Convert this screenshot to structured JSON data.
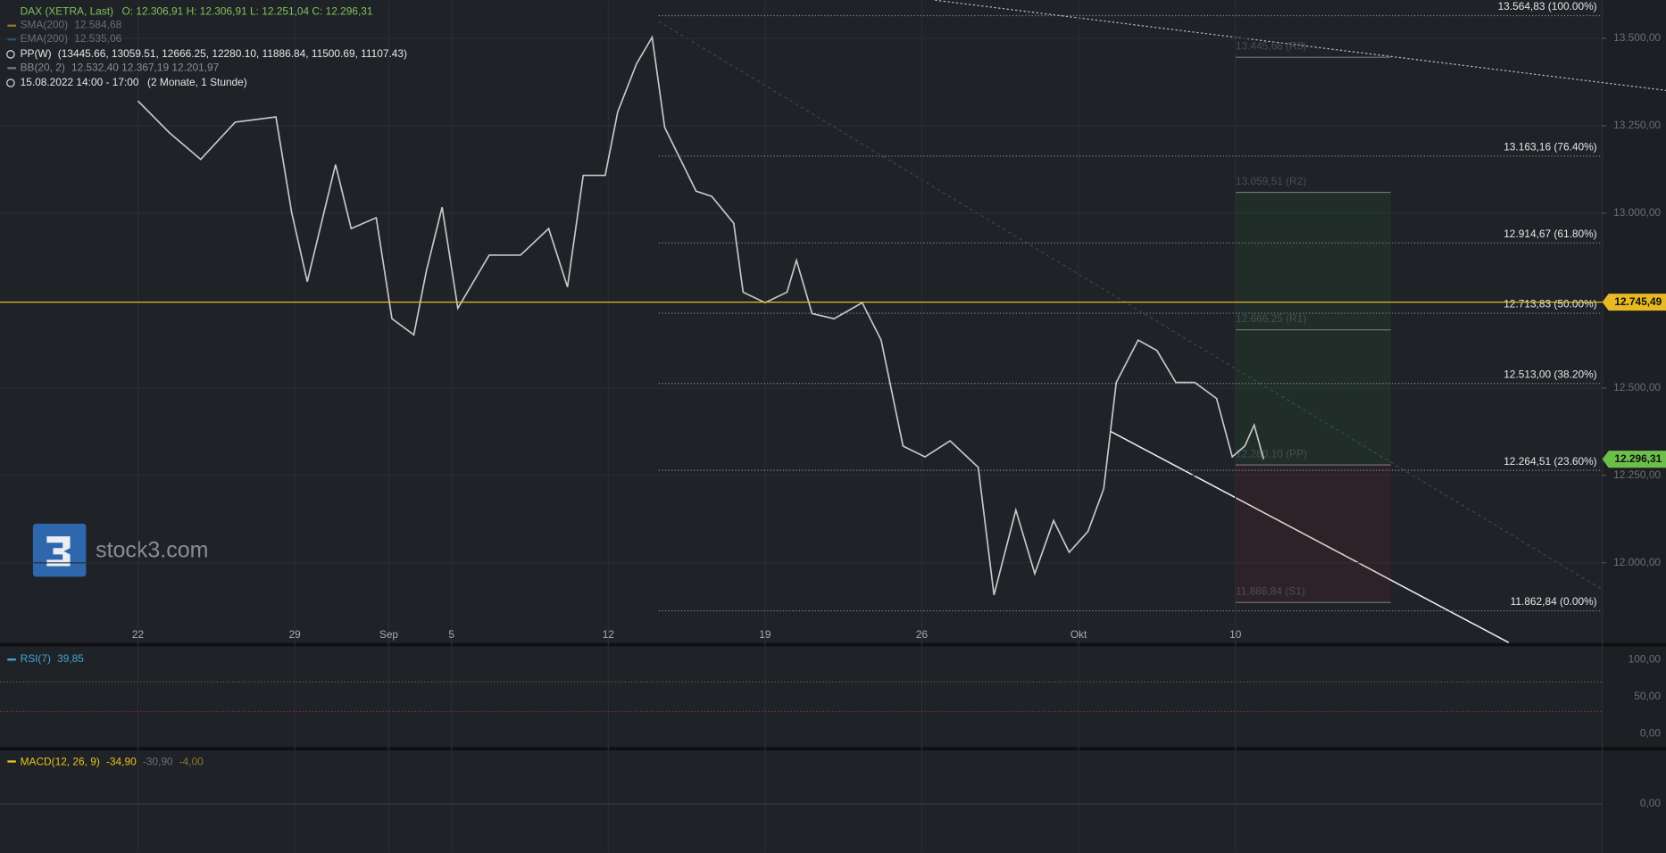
{
  "legend": {
    "symbol": "DAX (XETRA, Last)",
    "ohlc": "O: 12.306,91  H: 12.306,91  L: 12.251,04  C: 12.296,31",
    "sma": "SMA(200)",
    "sma_value": "12.584,68",
    "ema": "EMA(200)",
    "ema_value": "12.535,06",
    "pp": "PP(W)",
    "pp_values": "(13445.66, 13059.51, 12666.25, 12280.10, 11886.84, 11500.69, 11107.43)",
    "bb": "BB(20, 2)",
    "bb_values": "12.532,40  12.367,19  12.201,97",
    "range": "15.08.2022 14:00 - 17:00",
    "range_note": "(2 Monate, 1 Stunde)"
  },
  "logo": "stock3.com",
  "chart_data": {
    "type": "line",
    "color": "#c8c8c8",
    "grid": true,
    "x": [
      0,
      1.0,
      2.0,
      3.1,
      4.4,
      4.9,
      5.4,
      6.3,
      6.8,
      7.6,
      8.1,
      8.8,
      9.2,
      9.7,
      10.2,
      11.2,
      12.2,
      13.1,
      13.7,
      14.2,
      14.9,
      15.3,
      15.9,
      16.4,
      16.8,
      17.3,
      17.8,
      18.3,
      19.0,
      19.3,
      20.0,
      20.7,
      21.0,
      21.5,
      22.2,
      23.1,
      23.7,
      24.4,
      25.1,
      25.9,
      26.8,
      27.3,
      28.0,
      28.6,
      29.2,
      29.7,
      30.3,
      30.8,
      31.2,
      31.9,
      32.5,
      33.1,
      33.7,
      34.4,
      34.9,
      35.3,
      35.6,
      35.9
    ],
    "values": [
      13321,
      13230,
      13154,
      13260,
      13275,
      13002,
      12804,
      13139,
      12956,
      12987,
      12698,
      12652,
      12835,
      13017,
      12728,
      12880,
      12880,
      12956,
      12789,
      13108,
      13108,
      13290,
      13427,
      13503,
      13245,
      13154,
      13063,
      13048,
      12971,
      12774,
      12744,
      12774,
      12865,
      12713,
      12698,
      12744,
      12637,
      12334,
      12303,
      12349,
      12273,
      11908,
      12151,
      11969,
      12121,
      12030,
      12090,
      12212,
      12516,
      12637,
      12607,
      12516,
      12516,
      12470,
      12303,
      12334,
      12394,
      12296.31
    ],
    "xlim": [
      -4.4,
      46.7
    ],
    "ylim": [
      11772,
      13609
    ],
    "xticks": [
      {
        "value": 0,
        "label": "22"
      },
      {
        "value": 5,
        "label": "29"
      },
      {
        "value": 8,
        "label": "Sep"
      },
      {
        "value": 10,
        "label": "5"
      },
      {
        "value": 15,
        "label": "12"
      },
      {
        "value": 20,
        "label": "19"
      },
      {
        "value": 25,
        "label": "26"
      },
      {
        "value": 30,
        "label": "Okt"
      },
      {
        "value": 35,
        "label": "10"
      }
    ],
    "yticks": [
      {
        "value": 12000,
        "label": "12.000,00"
      },
      {
        "value": 12250,
        "label": "12.250,00"
      },
      {
        "value": 12500,
        "label": "12.500,00"
      },
      {
        "value": 13000,
        "label": "13.000,00"
      },
      {
        "value": 13250,
        "label": "13.250,00"
      },
      {
        "value": 13500,
        "label": "13.500,00"
      }
    ],
    "fib_color": "#8a8d92",
    "fib_levels": [
      {
        "value": 13564.83,
        "label": "13.564,83 (100.00%)"
      },
      {
        "value": 13163.16,
        "label": "13.163,16 (76.40%)"
      },
      {
        "value": 12914.67,
        "label": "12.914,67 (61.80%)"
      },
      {
        "value": 12713.83,
        "label": "12.713,83 (50.00%)"
      },
      {
        "value": 12513.0,
        "label": "12.513,00 (38.20%)"
      },
      {
        "value": 12264.51,
        "label": "12.264,51 (23.60%)"
      },
      {
        "value": 11862.84,
        "label": "11.862,84 (0.00%)"
      }
    ],
    "pivots": [
      {
        "value": 13445.66,
        "label": "13.445,66 (R3)"
      },
      {
        "value": 13059.51,
        "label": "13.059,51 (R2)"
      },
      {
        "value": 12666.25,
        "label": "12.666,25 (R1)"
      },
      {
        "value": 12280.1,
        "label": "12.280,10 (PP)"
      },
      {
        "value": 11886.84,
        "label": "11.886,84 (S1)"
      }
    ],
    "price_markers": [
      {
        "value": 12745.49,
        "label": "12.745,49",
        "color": "#e8b923"
      },
      {
        "value": 12296.31,
        "label": "12.296,31",
        "color": "#6cc04a"
      }
    ]
  },
  "rsi": {
    "title": "RSI(7)",
    "value": "39,85",
    "ylim": [
      0,
      100
    ],
    "yticks": [
      {
        "value": 0,
        "label": "0,00"
      },
      {
        "value": 50,
        "label": "50,00"
      },
      {
        "value": 100,
        "label": "100,00"
      }
    ],
    "levels": [
      70,
      30
    ]
  },
  "macd": {
    "title": "MACD(12, 26, 9)",
    "values": "-34,90",
    "signal": "-30,90",
    "histogram": "-4,00",
    "yticks": [
      {
        "value": 0,
        "label": "0,00"
      }
    ]
  }
}
